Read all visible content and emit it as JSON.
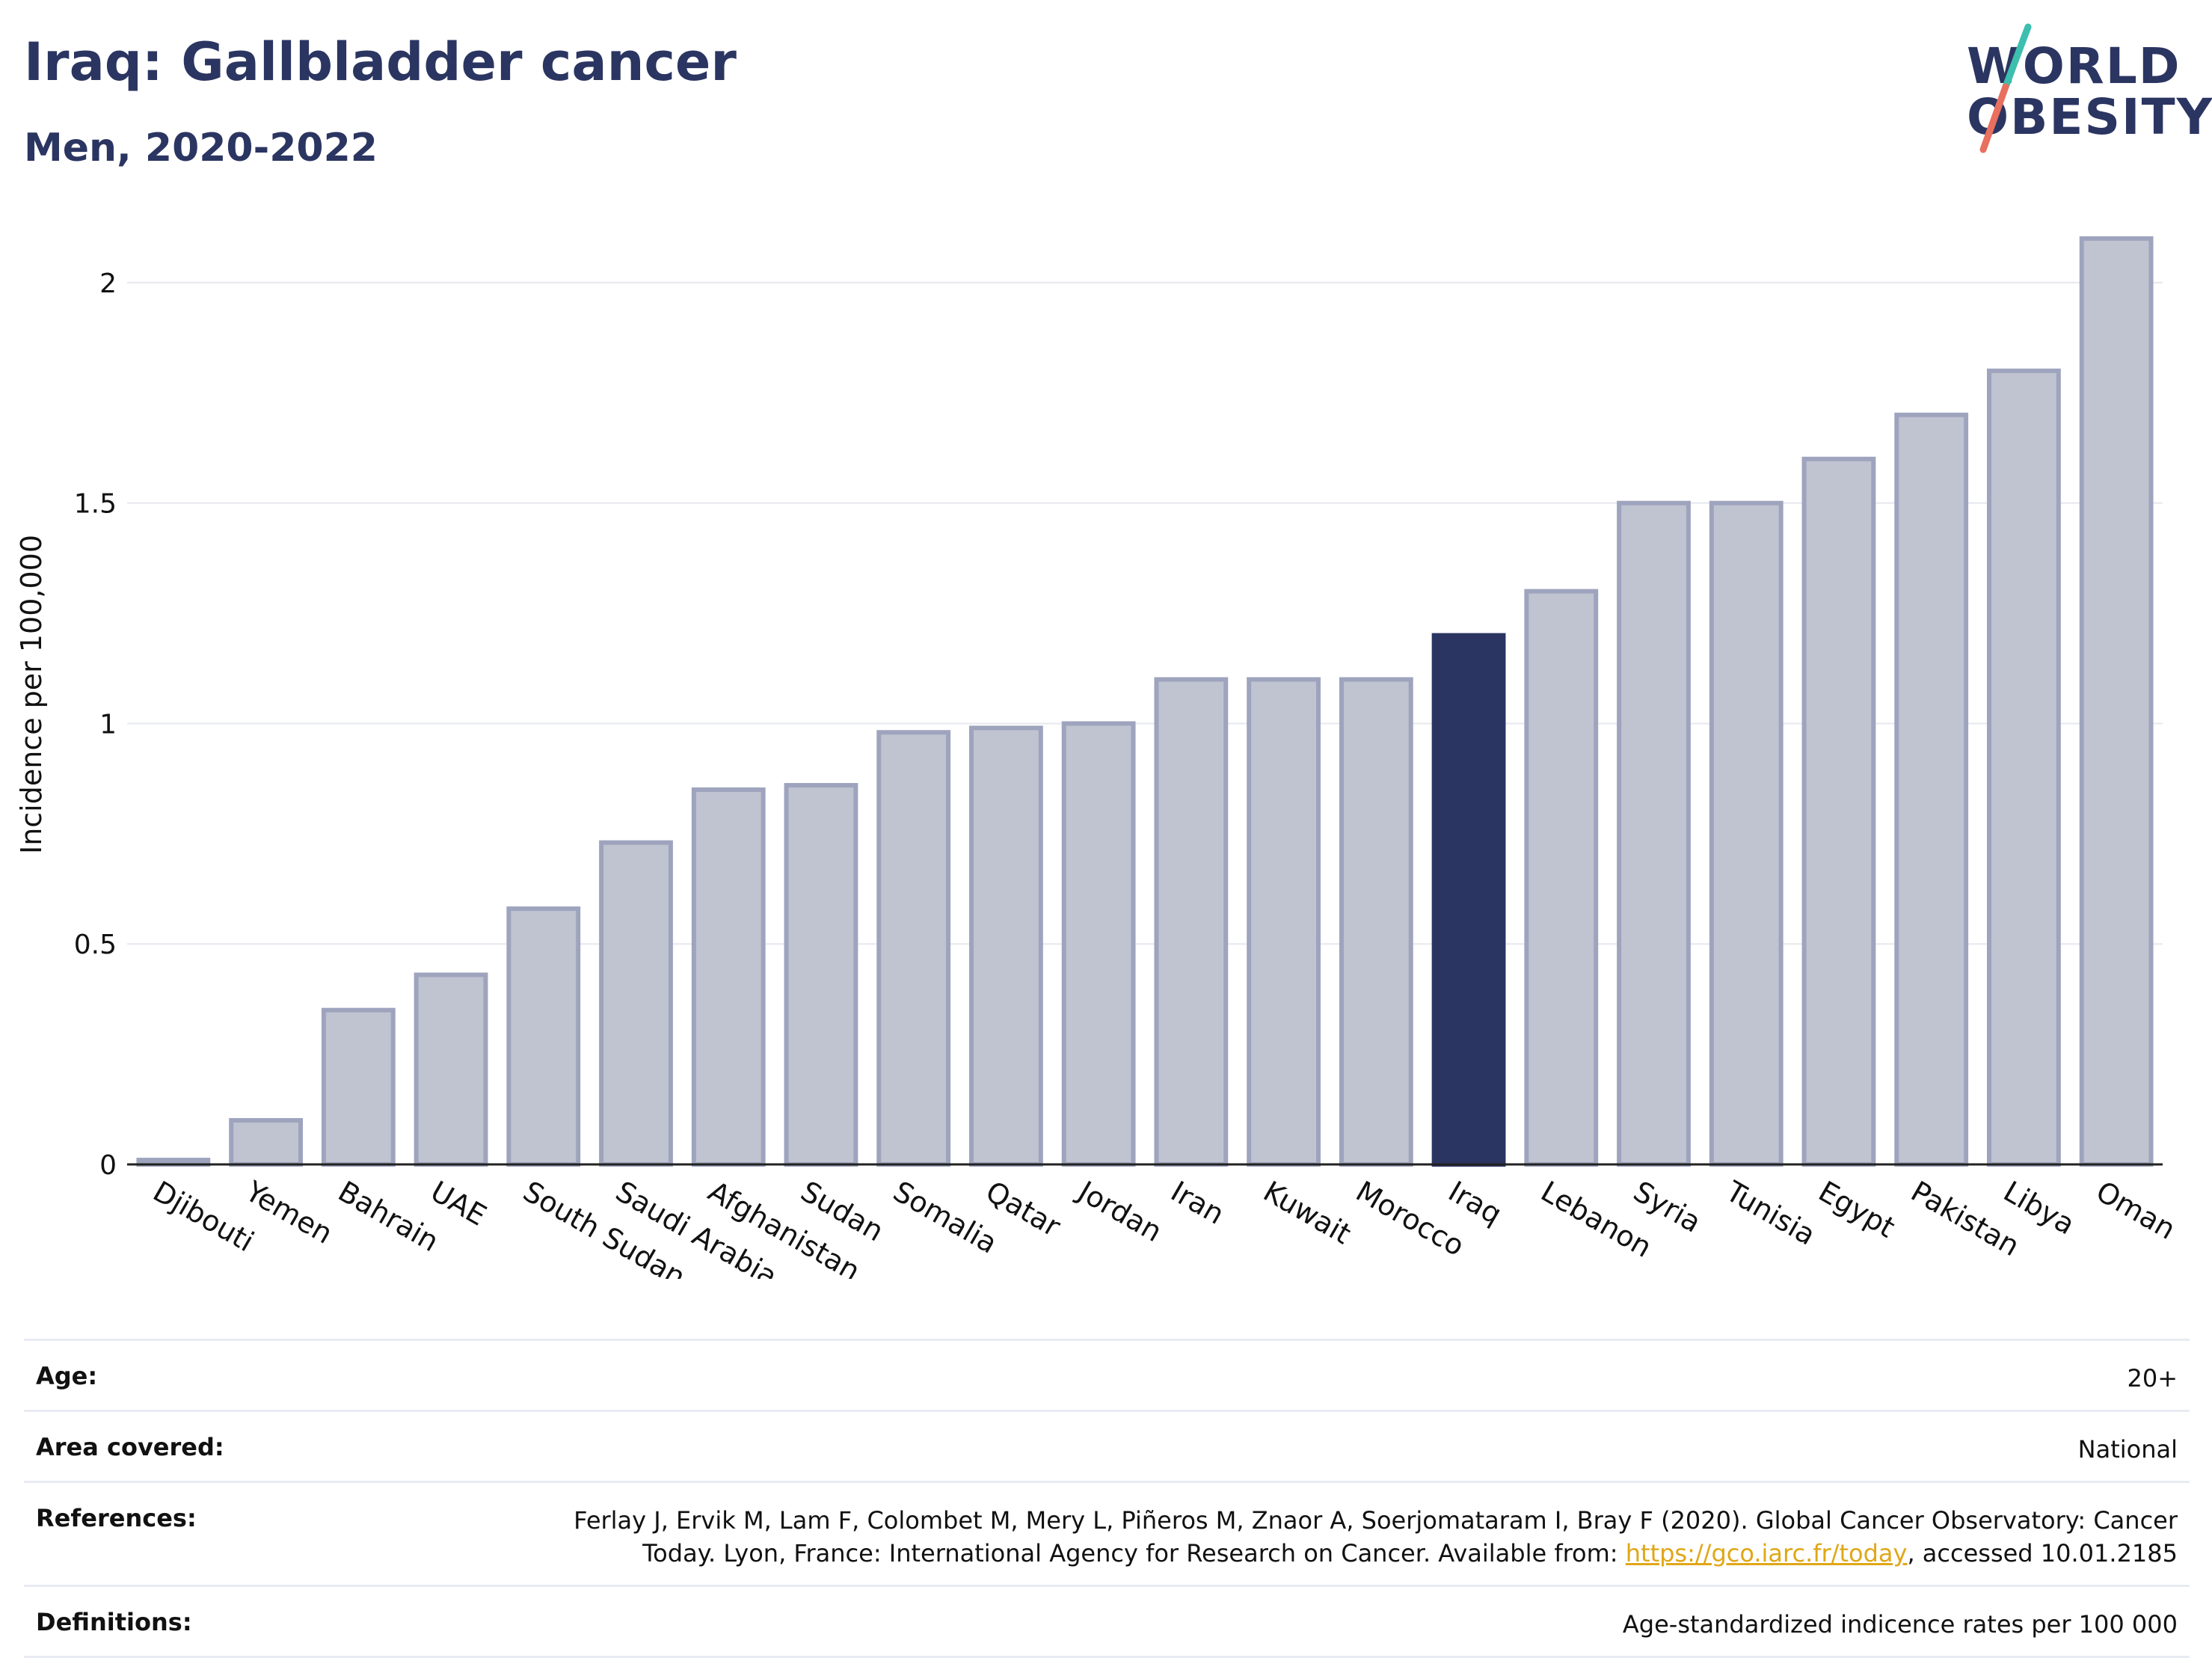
{
  "header": {
    "title": "Iraq: Gallbladder cancer",
    "subtitle": "Men, 2020-2022",
    "logo_line1": "WORLD",
    "logo_line2": "OBESITY"
  },
  "chart_data": {
    "type": "bar",
    "ylabel": "Incidence per 100,000",
    "ylim": [
      0,
      2.2
    ],
    "yticks": [
      0,
      0.5,
      1,
      1.5,
      2
    ],
    "ytick_labels": [
      "0",
      "0.5",
      "1",
      "1.5",
      "2"
    ],
    "grid": true,
    "highlight": "Iraq",
    "colors": {
      "bar": "#c0c3d0",
      "bar_edge": "#9ea4bd",
      "highlight": "#2b3561"
    },
    "categories": [
      "Djibouti",
      "Yemen",
      "Bahrain",
      "UAE",
      "South Sudan",
      "Saudi Arabia",
      "Afghanistan",
      "Sudan",
      "Somalia",
      "Qatar",
      "Jordan",
      "Iran",
      "Kuwait",
      "Morocco",
      "Iraq",
      "Lebanon",
      "Syria",
      "Tunisia",
      "Egypt",
      "Pakistan",
      "Libya",
      "Oman"
    ],
    "values": [
      0.01,
      0.1,
      0.35,
      0.43,
      0.58,
      0.73,
      0.85,
      0.86,
      0.98,
      0.99,
      1.0,
      1.1,
      1.1,
      1.1,
      1.2,
      1.3,
      1.5,
      1.5,
      1.6,
      1.7,
      1.8,
      2.1
    ]
  },
  "info": {
    "age_label": "Age:",
    "age_value": "20+",
    "area_label": "Area covered:",
    "area_value": "National",
    "ref_label": "References:",
    "ref_text_1": "Ferlay J, Ervik M, Lam F, Colombet M, Mery L, Piñeros M, Znaor A, Soerjomataram I, Bray F (2020). Global Cancer Observatory: Cancer Today. Lyon, France: International Agency for Research on Cancer. Available from: ",
    "ref_link": "https://gco.iarc.fr/today",
    "ref_text_2": ", accessed 10.01.2185",
    "def_label": "Definitions:",
    "def_value": "Age-standardized indicence rates per 100 000"
  }
}
